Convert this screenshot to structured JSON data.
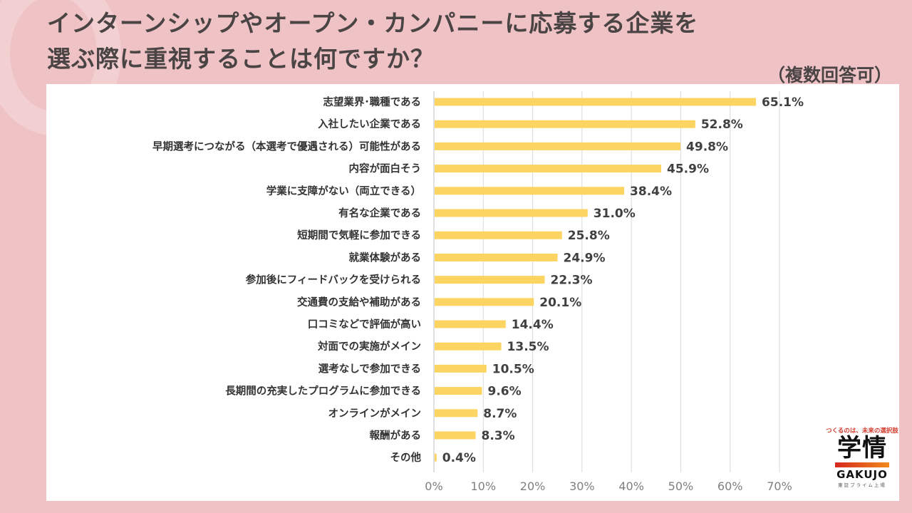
{
  "header": {
    "title_line1": "インターンシップやオープン・カンパニーに応募する企業を",
    "title_line2": "選ぶ際に重視することは何ですか？",
    "note": "（複数回答可）"
  },
  "logo": {
    "tagline": "つくるのは、未来の選択肢",
    "kanji": "学情",
    "roman": "GAKUJO",
    "sub": "東証プライム上場"
  },
  "colors": {
    "background": "#efc3c6",
    "bar": "#fcd462",
    "grid": "#d9d9d9",
    "text": "#404040"
  },
  "chart_data": {
    "type": "bar",
    "orientation": "horizontal",
    "title": "インターンシップやオープン・カンパニーに応募する企業を選ぶ際に重視することは何ですか？",
    "subtitle": "（複数回答可）",
    "xlabel": "",
    "ylabel": "",
    "xlim": [
      0,
      70
    ],
    "grid": true,
    "legend": "none",
    "x_ticks": [
      "0%",
      "10%",
      "20%",
      "30%",
      "40%",
      "50%",
      "60%",
      "70%"
    ],
    "categories": [
      "志望業界･職種である",
      "入社したい企業である",
      "早期選考につながる（本選考で優遇される）可能性がある",
      "内容が面白そう",
      "学業に支障がない（両立できる）",
      "有名な企業である",
      "短期間で気軽に参加できる",
      "就業体験がある",
      "参加後にフィードバックを受けられる",
      "交通費の支給や補助がある",
      "口コミなどで評価が高い",
      "対面での実施がメイン",
      "選考なしで参加できる",
      "長期間の充実したプログラムに参加できる",
      "オンラインがメイン",
      "報酬がある",
      "その他"
    ],
    "values": [
      65.1,
      52.8,
      49.8,
      45.9,
      38.4,
      31.0,
      25.8,
      24.9,
      22.3,
      20.1,
      14.4,
      13.5,
      10.5,
      9.6,
      8.7,
      8.3,
      0.4
    ],
    "value_labels": [
      "65.1%",
      "52.8%",
      "49.8%",
      "45.9%",
      "38.4%",
      "31.0%",
      "25.8%",
      "24.9%",
      "22.3%",
      "20.1%",
      "14.4%",
      "13.5%",
      "10.5%",
      "9.6%",
      "8.7%",
      "8.3%",
      "0.4%"
    ]
  }
}
